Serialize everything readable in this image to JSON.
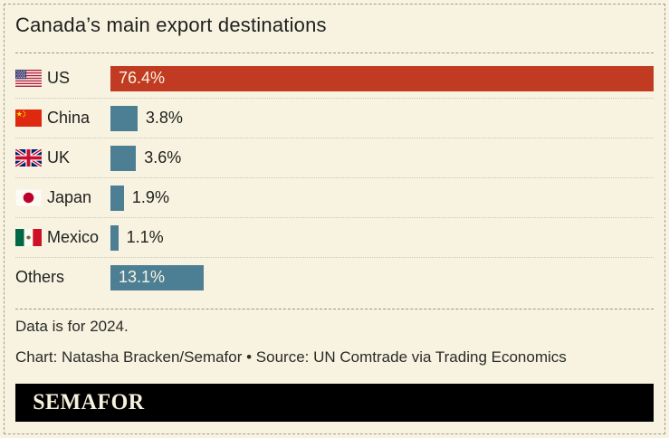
{
  "page": {
    "title": "Canada’s main export destinations"
  },
  "chart_data": {
    "type": "bar",
    "orientation": "horizontal",
    "title": "Canada’s main export destinations",
    "categories": [
      "US",
      "China",
      "UK",
      "Japan",
      "Mexico",
      "Others"
    ],
    "values": [
      76.4,
      3.8,
      3.6,
      1.9,
      1.1,
      13.1
    ],
    "value_labels": [
      "76.4%",
      "3.8%",
      "3.6%",
      "1.9%",
      "1.1%",
      "13.1%"
    ],
    "xlim": [
      0,
      76.4
    ],
    "grid": false,
    "legend": false,
    "rows": [
      {
        "country": "US",
        "value": 76.4,
        "label": "76.4%",
        "flag": "us",
        "bar_color": "#c13b22",
        "label_inside": true
      },
      {
        "country": "China",
        "value": 3.8,
        "label": "3.8%",
        "flag": "china",
        "bar_color": "#4d7f94",
        "label_inside": false
      },
      {
        "country": "UK",
        "value": 3.6,
        "label": "3.6%",
        "flag": "uk",
        "bar_color": "#4d7f94",
        "label_inside": false
      },
      {
        "country": "Japan",
        "value": 1.9,
        "label": "1.9%",
        "flag": "japan",
        "bar_color": "#4d7f94",
        "label_inside": false
      },
      {
        "country": "Mexico",
        "value": 1.1,
        "label": "1.1%",
        "flag": "mexico",
        "bar_color": "#4d7f94",
        "label_inside": false
      },
      {
        "country": "Others",
        "value": 13.1,
        "label": "13.1%",
        "flag": "none",
        "bar_color": "#4d7f94",
        "label_inside": true
      }
    ]
  },
  "footer": {
    "note": "Data is for 2024.",
    "credit": "Chart: Natasha Bracken/Semafor • Source: UN Comtrade via Trading Economics"
  },
  "logo": {
    "text": "SEMAFOR"
  },
  "colors": {
    "background": "#f7f3e0",
    "us_bar": "#c13b22",
    "other_bars": "#4d7f94",
    "text": "#1f1f1e",
    "bar_label_light": "#f7f3e0",
    "separator": "#9b978a",
    "row_separator": "#cbc7b2",
    "logo_bg": "#000000",
    "logo_text": "#f5f1de"
  }
}
